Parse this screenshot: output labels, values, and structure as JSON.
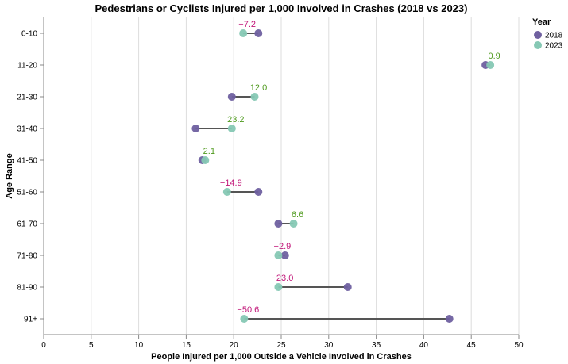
{
  "chart_data": {
    "type": "dumbbell",
    "title": "Pedestrians or Cyclists Injured per 1,000 Involved in Crashes (2018 vs 2023)",
    "xlabel": "People Injured per 1,000 Outside a Vehicle Involved in Crashes",
    "ylabel": "Age Range",
    "xlim": [
      0,
      50
    ],
    "xticks": [
      "0",
      "5",
      "10",
      "15",
      "20",
      "25",
      "30",
      "35",
      "40",
      "45",
      "50"
    ],
    "grid": "vertical",
    "legend": {
      "title": "Year",
      "position": "top-right",
      "items": [
        {
          "label": "2018",
          "color": "#6f60a0"
        },
        {
          "label": "2023",
          "color": "#86c8b4"
        }
      ]
    },
    "categories": [
      "0-10",
      "11-20",
      "21-30",
      "31-40",
      "41-50",
      "51-60",
      "61-70",
      "71-80",
      "81-90",
      "91+"
    ],
    "series": [
      {
        "name": "2018",
        "values": [
          22.6,
          46.5,
          19.8,
          16.0,
          16.7,
          22.6,
          24.7,
          25.4,
          32.0,
          42.7
        ]
      },
      {
        "name": "2023",
        "values": [
          21.0,
          47.0,
          22.2,
          19.8,
          17.0,
          19.3,
          26.3,
          24.7,
          24.7,
          21.1
        ]
      }
    ],
    "change_labels": [
      "−7.2",
      "0.9",
      "12.0",
      "23.2",
      "2.1",
      "−14.9",
      "6.6",
      "−2.9",
      "−23.0",
      "−50.6"
    ],
    "colors": {
      "increase": "#4f9a1e",
      "decrease": "#c2187a",
      "connector": "#555555"
    }
  }
}
